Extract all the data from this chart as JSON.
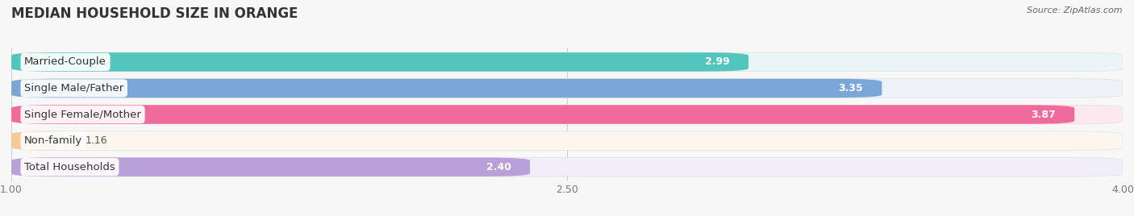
{
  "title": "MEDIAN HOUSEHOLD SIZE IN ORANGE",
  "source": "Source: ZipAtlas.com",
  "categories": [
    "Married-Couple",
    "Single Male/Father",
    "Single Female/Mother",
    "Non-family",
    "Total Households"
  ],
  "values": [
    2.99,
    3.35,
    3.87,
    1.16,
    2.4
  ],
  "bar_colors": [
    "#52c5bd",
    "#7ba7d8",
    "#f06b9b",
    "#f5c99a",
    "#b9a0d8"
  ],
  "bar_bg_colors": [
    "#eaf6f5",
    "#eef2f9",
    "#fde8f0",
    "#fdf6ee",
    "#f2eef9"
  ],
  "xmin": 1.0,
  "xmax": 4.0,
  "xticks": [
    1.0,
    2.5,
    4.0
  ],
  "label_fontsize": 9.5,
  "value_fontsize": 9,
  "title_fontsize": 12,
  "background_color": "#f7f7f7",
  "value_inside_threshold": 0.5
}
